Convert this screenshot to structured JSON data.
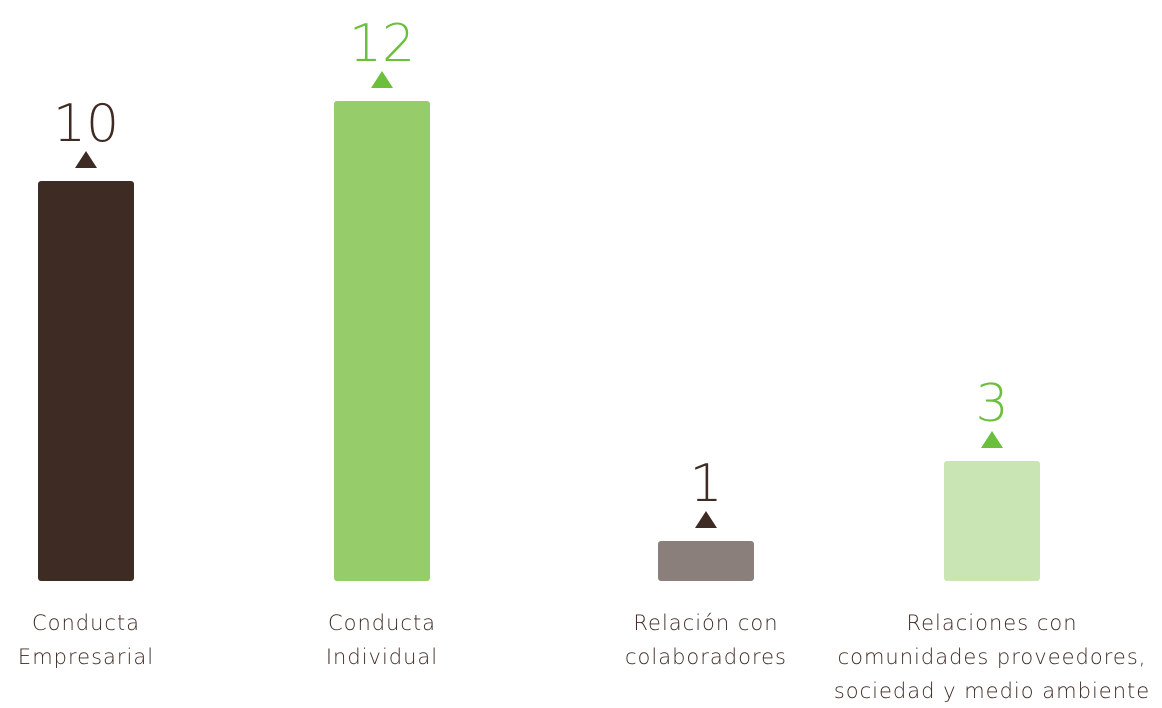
{
  "chart_data": {
    "type": "bar",
    "categories": [
      "Conducta\nEmpresarial",
      "Conducta\nIndividual",
      "Relación con\ncolaboradores",
      "Relaciones con\ncomunidades proveedores,\nsociedad y medio ambiente"
    ],
    "values": [
      10,
      12,
      1,
      3
    ],
    "colors": [
      "#3e2b24",
      "#96cd6a",
      "#8a7f7a",
      "#c9e5b3"
    ],
    "label_colors": [
      "#3e2b24",
      "#6cbf3c",
      "#3e2b24",
      "#6cbf3c"
    ],
    "ylim": [
      0,
      12
    ]
  }
}
